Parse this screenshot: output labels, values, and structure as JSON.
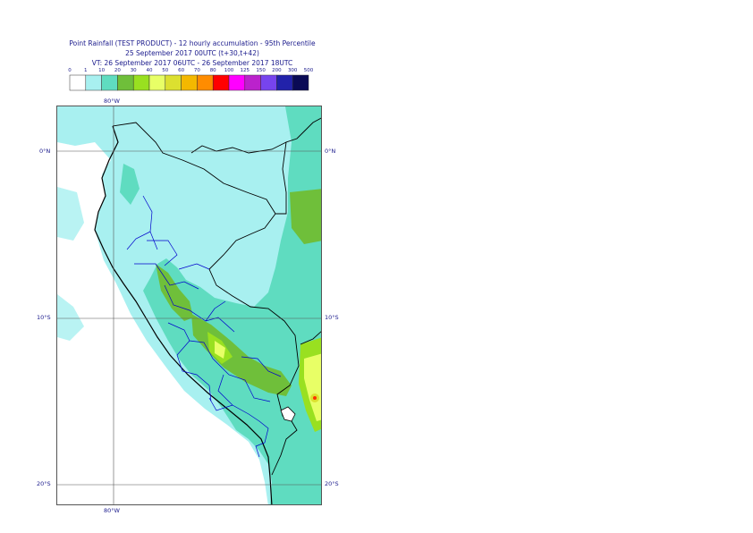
{
  "title": {
    "line1": "Point Rainfall (TEST PRODUCT) - 12 hourly accumulation - 95th Percentile",
    "line2": "25 September 2017 00UTC (t+30,t+42)",
    "line3": "VT: 26 September 2017 06UTC - 26 September 2017 18UTC"
  },
  "legend": {
    "thresholds": [
      "0",
      "1",
      "10",
      "20",
      "30",
      "40",
      "50",
      "60",
      "70",
      "80",
      "100",
      "125",
      "150",
      "200",
      "300",
      "500"
    ],
    "colors": [
      "#ffffff",
      "#a8f0f0",
      "#5fdcc0",
      "#6fbf3a",
      "#99e020",
      "#e8ff66",
      "#dce030",
      "#f4b800",
      "#ff8c00",
      "#ff0000",
      "#ff00ff",
      "#bb22cc",
      "#7744ee",
      "#2222aa",
      "#0a0a55"
    ]
  },
  "map": {
    "labels": {
      "lon_top": "80°W",
      "lon_bottom": "80°W",
      "lat_0_left": "0°N",
      "lat_0_right": "0°N",
      "lat_10_left": "10°S",
      "lat_10_right": "10°S",
      "lat_20_left": "20°S",
      "lat_20_right": "20°S"
    },
    "colors": {
      "ocean": "#ffffff",
      "cat1": "#a8f0f0",
      "cat2": "#5fdcc0",
      "cat3": "#6fbf3a",
      "cat4": "#99e020",
      "cat5": "#e8ff66",
      "cat6": "#dce030",
      "peak": "#ff3300",
      "coast": "#000000",
      "regions": "#0000cc",
      "grid": "#555555"
    }
  }
}
